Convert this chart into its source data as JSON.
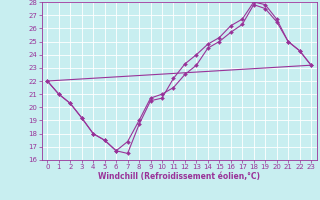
{
  "title": "",
  "xlabel": "Windchill (Refroidissement éolien,°C)",
  "bg_color": "#c8eef0",
  "grid_color": "#ffffff",
  "line_color": "#993399",
  "line1_x": [
    0,
    1,
    2,
    3,
    4,
    5,
    6,
    7,
    8,
    9,
    10,
    11,
    12,
    13,
    14,
    15,
    16,
    17,
    18,
    19,
    20,
    21,
    22,
    23
  ],
  "line1_y": [
    22.0,
    21.0,
    20.3,
    19.2,
    18.0,
    17.5,
    16.7,
    16.5,
    18.7,
    20.5,
    20.7,
    22.2,
    23.3,
    24.0,
    24.8,
    25.3,
    26.2,
    26.7,
    28.0,
    27.8,
    26.7,
    25.0,
    24.3,
    23.2
  ],
  "line2_x": [
    0,
    1,
    2,
    3,
    4,
    5,
    6,
    7,
    8,
    9,
    10,
    11,
    12,
    13,
    14,
    15,
    16,
    17,
    18,
    19,
    20,
    21,
    22,
    23
  ],
  "line2_y": [
    22.0,
    21.0,
    20.3,
    19.2,
    18.0,
    17.5,
    16.7,
    17.4,
    19.0,
    20.7,
    21.0,
    21.5,
    22.5,
    23.2,
    24.5,
    25.0,
    25.7,
    26.3,
    27.8,
    27.5,
    26.5,
    25.0,
    24.3,
    23.2
  ],
  "line3_x": [
    0,
    23
  ],
  "line3_y": [
    22.0,
    23.2
  ],
  "xlim": [
    -0.5,
    23.5
  ],
  "ylim": [
    16,
    28
  ],
  "xticks": [
    0,
    1,
    2,
    3,
    4,
    5,
    6,
    7,
    8,
    9,
    10,
    11,
    12,
    13,
    14,
    15,
    16,
    17,
    18,
    19,
    20,
    21,
    22,
    23
  ],
  "yticks": [
    16,
    17,
    18,
    19,
    20,
    21,
    22,
    23,
    24,
    25,
    26,
    27,
    28
  ],
  "markersize": 2.0,
  "linewidth": 0.8,
  "tick_fontsize": 5.0,
  "xlabel_fontsize": 5.5
}
